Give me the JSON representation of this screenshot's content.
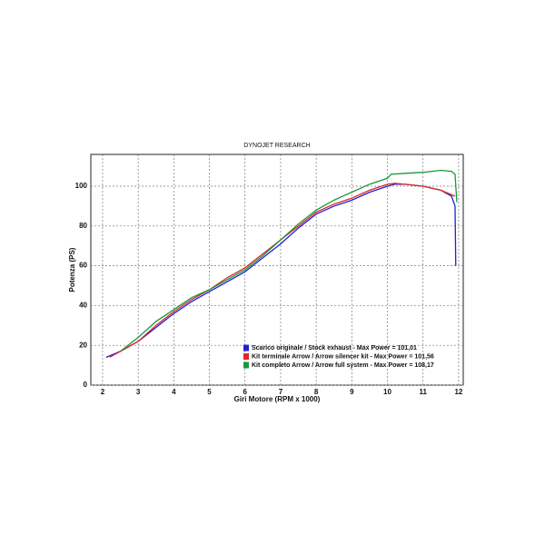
{
  "chart_data": {
    "type": "line",
    "title": "DYNOJET RESEARCH",
    "x_label": "Giri Motore (RPM x 1000)",
    "y_label": "Potenza (PS)",
    "xlim": [
      1.67,
      12.13
    ],
    "ylim": [
      0,
      116
    ],
    "xticks": [
      2,
      3,
      4,
      5,
      6,
      7,
      8,
      9,
      10,
      11,
      12
    ],
    "yticks": [
      0,
      20,
      40,
      60,
      80,
      100
    ],
    "grid": true,
    "series": [
      {
        "name": "Scarico originale / Stock exhaust - Max Power = 101,01",
        "color": "#2020d8",
        "x": [
          2.1,
          2.5,
          3,
          3.5,
          4,
          4.5,
          5,
          5.5,
          6,
          6.5,
          7,
          7.5,
          8,
          8.5,
          9,
          9.5,
          10,
          10.2,
          10.5,
          11,
          11.5,
          11.8,
          11.9,
          11.92
        ],
        "values": [
          14,
          17,
          22,
          29,
          36,
          42,
          47,
          52,
          57,
          64,
          71,
          79,
          86,
          90,
          93,
          97,
          100,
          101,
          101,
          100,
          98,
          95,
          90,
          60
        ]
      },
      {
        "name": "Kit terminale Arrow / Arrow silencer kit - Max Power = 101,56",
        "color": "#e02828",
        "x": [
          2.2,
          2.5,
          3,
          3.5,
          4,
          4.5,
          5,
          5.5,
          6,
          6.5,
          7,
          7.5,
          8,
          8.5,
          9,
          9.5,
          10,
          10.2,
          10.5,
          11,
          11.5,
          11.9
        ],
        "values": [
          14,
          17,
          22,
          30,
          37,
          43,
          48,
          54,
          59,
          66,
          73,
          80,
          87,
          91,
          94,
          98,
          101,
          101.5,
          101,
          100,
          98,
          95
        ]
      },
      {
        "name": "Kit completo Arrow / Arrow full system - Max Power = 108,17",
        "color": "#18983a",
        "x": [
          2.5,
          3,
          3.5,
          4,
          4.5,
          5,
          5.5,
          6,
          6.5,
          7,
          7.5,
          8,
          8.5,
          9,
          9.5,
          10,
          10.1,
          10.5,
          11,
          11.5,
          11.8,
          11.9,
          11.95
        ],
        "values": [
          17,
          24,
          32,
          38,
          44,
          48,
          53,
          58,
          65,
          73,
          81,
          88,
          93,
          97,
          101,
          104,
          106,
          106.5,
          107,
          108,
          107.5,
          106,
          92
        ]
      }
    ]
  }
}
